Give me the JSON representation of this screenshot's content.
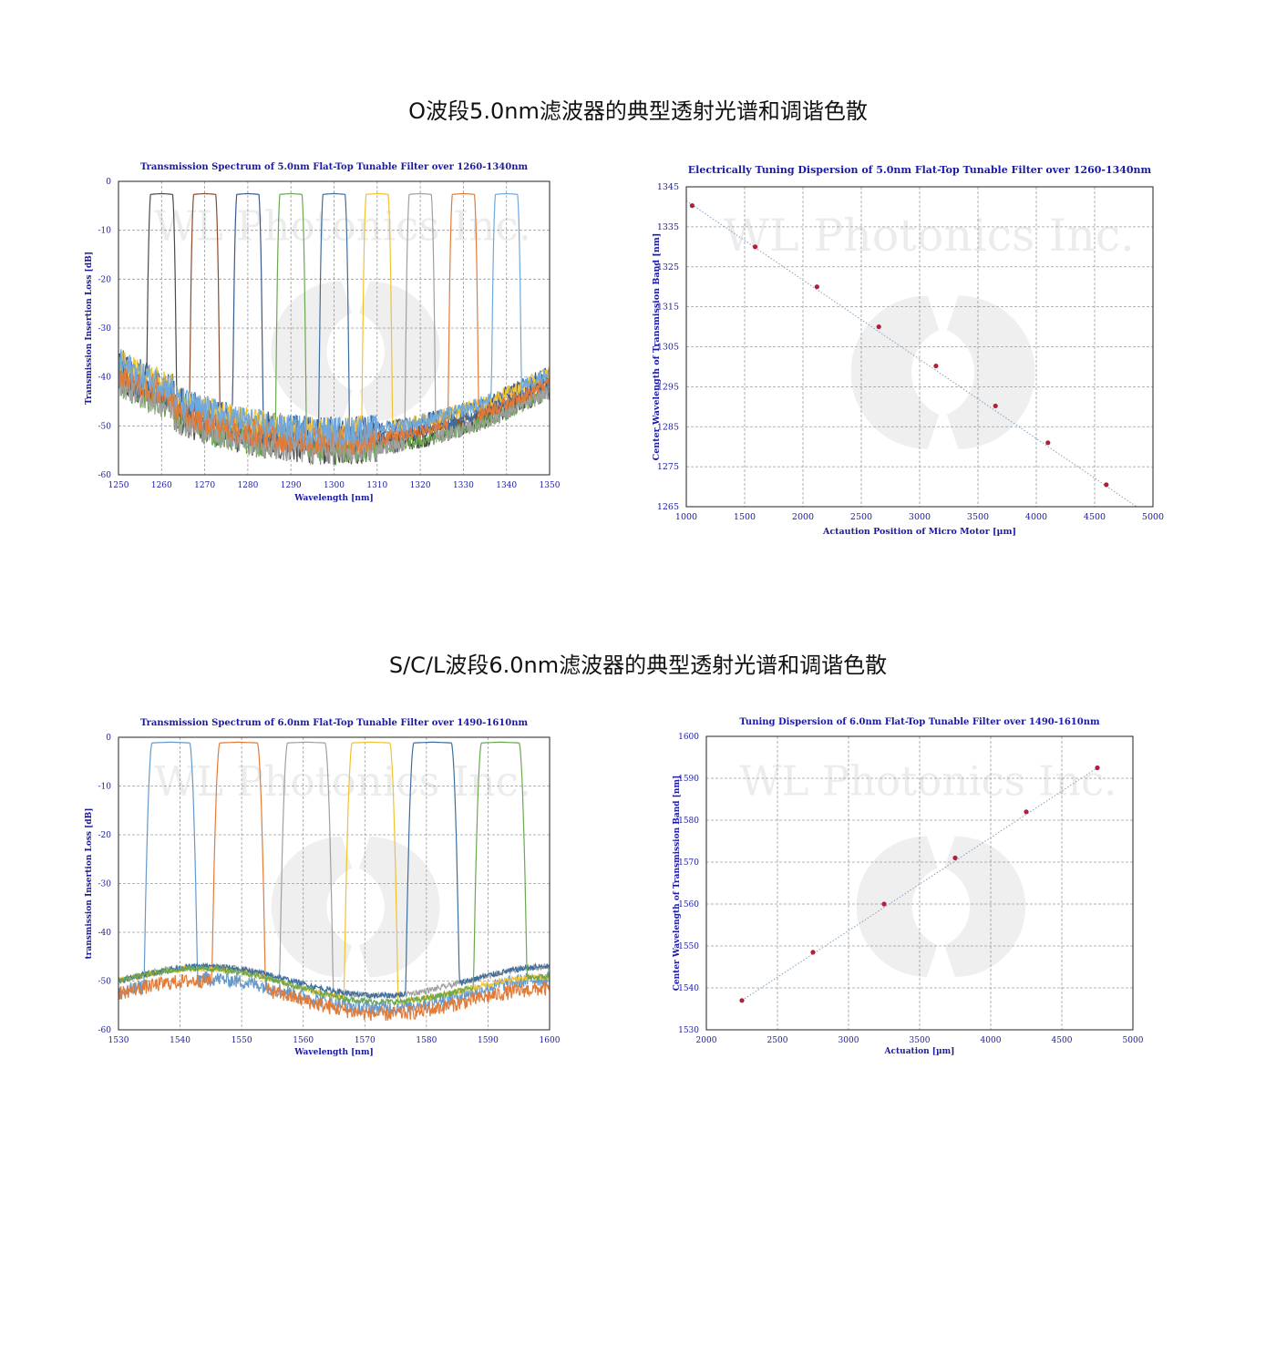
{
  "headings": {
    "o_band": "O波段5.0nm滤波器的典型透射光谱和调谐色散",
    "scl_band": "S/C/L波段6.0nm滤波器的典型透射光谱和调谐色散"
  },
  "watermark": "WL Photonics Inc.",
  "colors": {
    "title_blue": "#1a1aa6",
    "grid": "#9a9a9a",
    "marker": "#b0203a",
    "fit_line": "#7fa0c0"
  },
  "chart_data": [
    {
      "id": "chart1",
      "type": "line",
      "title": "Transmission Spectrum of 5.0nm Flat-Top Tunable Filter over 1260-1340nm",
      "xlabel": "Wavelength [nm]",
      "ylabel": "Transmission Insertion Loss [dB]",
      "xlim": [
        1250,
        1350
      ],
      "ylim": [
        -60,
        0
      ],
      "xticks": [
        1250,
        1260,
        1270,
        1280,
        1290,
        1300,
        1310,
        1320,
        1330,
        1340,
        1350
      ],
      "yticks": [
        0,
        -10,
        -20,
        -30,
        -40,
        -50,
        -60
      ],
      "grid": true,
      "peak_loss": -2.5,
      "passband_top_width_nm": 5.0,
      "series": [
        {
          "center": 1260,
          "color": "#4a4a4a"
        },
        {
          "center": 1270,
          "color": "#8b4a2b"
        },
        {
          "center": 1280,
          "color": "#3a5a8c"
        },
        {
          "center": 1290,
          "color": "#6aa84f"
        },
        {
          "center": 1300,
          "color": "#3d6e9e"
        },
        {
          "center": 1310,
          "color": "#f1c232"
        },
        {
          "center": 1320,
          "color": "#a0a0a0"
        },
        {
          "center": 1330,
          "color": "#e07b39"
        },
        {
          "center": 1340,
          "color": "#6fa8dc"
        }
      ]
    },
    {
      "id": "chart2",
      "type": "scatter",
      "title": "Electrically Tuning Dispersion of 5.0nm Flat-Top Tunable Filter over 1260-1340nm",
      "xlabel": "Actaution Position of Micro Motor [µm]",
      "ylabel": "Center Wavelength of Transmission Band [nm]",
      "xlim": [
        1000,
        5000
      ],
      "ylim": [
        1265,
        1345
      ],
      "xticks": [
        1000,
        1500,
        2000,
        2500,
        3000,
        3500,
        4000,
        4500,
        5000
      ],
      "yticks": [
        1265,
        1275,
        1285,
        1295,
        1305,
        1315,
        1325,
        1335,
        1345
      ],
      "grid": true,
      "x": [
        1050,
        1590,
        2120,
        2650,
        3140,
        3650,
        4100,
        4600
      ],
      "y": [
        1340.3,
        1330.0,
        1320.0,
        1310.0,
        1300.2,
        1290.2,
        1281.0,
        1270.5
      ],
      "fit": {
        "x": [
          1000,
          4860
        ],
        "y": [
          1341.5,
          1265.0
        ]
      }
    },
    {
      "id": "chart3",
      "type": "line",
      "title": "Transmission Spectrum of 6.0nm Flat-Top Tunable Filter over 1490-1610nm",
      "xlabel": "Wavelength [nm]",
      "ylabel": "transmission Insertion Loss [dB]",
      "xlim": [
        1530,
        1600
      ],
      "ylim": [
        -60,
        0
      ],
      "xticks": [
        1530,
        1540,
        1550,
        1560,
        1570,
        1580,
        1590,
        1600
      ],
      "yticks": [
        0,
        -10,
        -20,
        -30,
        -40,
        -50,
        -60
      ],
      "grid": true,
      "peak_loss": -1.0,
      "passband_top_width_nm": 6.0,
      "series": [
        {
          "center": 1538.5,
          "color": "#6699cc"
        },
        {
          "center": 1549.5,
          "color": "#e07b39"
        },
        {
          "center": 1560.5,
          "color": "#a0a0a0"
        },
        {
          "center": 1571.0,
          "color": "#f1c232"
        },
        {
          "center": 1581.0,
          "color": "#3d6e9e"
        },
        {
          "center": 1592.0,
          "color": "#6aa84f"
        }
      ]
    },
    {
      "id": "chart4",
      "type": "scatter",
      "title": "Tuning Dispersion of 6.0nm Flat-Top Tunable Filter over 1490-1610nm",
      "xlabel": "Actuation [µm]",
      "ylabel": "Center Wavelength of Transmission Band [nm]",
      "xlim": [
        2000,
        5000
      ],
      "ylim": [
        1530,
        1600
      ],
      "xticks": [
        2000,
        2500,
        3000,
        3500,
        4000,
        4500,
        5000
      ],
      "yticks": [
        1530,
        1540,
        1550,
        1560,
        1570,
        1580,
        1590,
        1600
      ],
      "grid": true,
      "x": [
        2250,
        2750,
        3250,
        3750,
        4250,
        4750
      ],
      "y": [
        1537.0,
        1548.5,
        1560.0,
        1571.0,
        1582.0,
        1592.5
      ],
      "fit": {
        "x": [
          2250,
          4750
        ],
        "y": [
          1537.0,
          1592.5
        ]
      }
    }
  ]
}
